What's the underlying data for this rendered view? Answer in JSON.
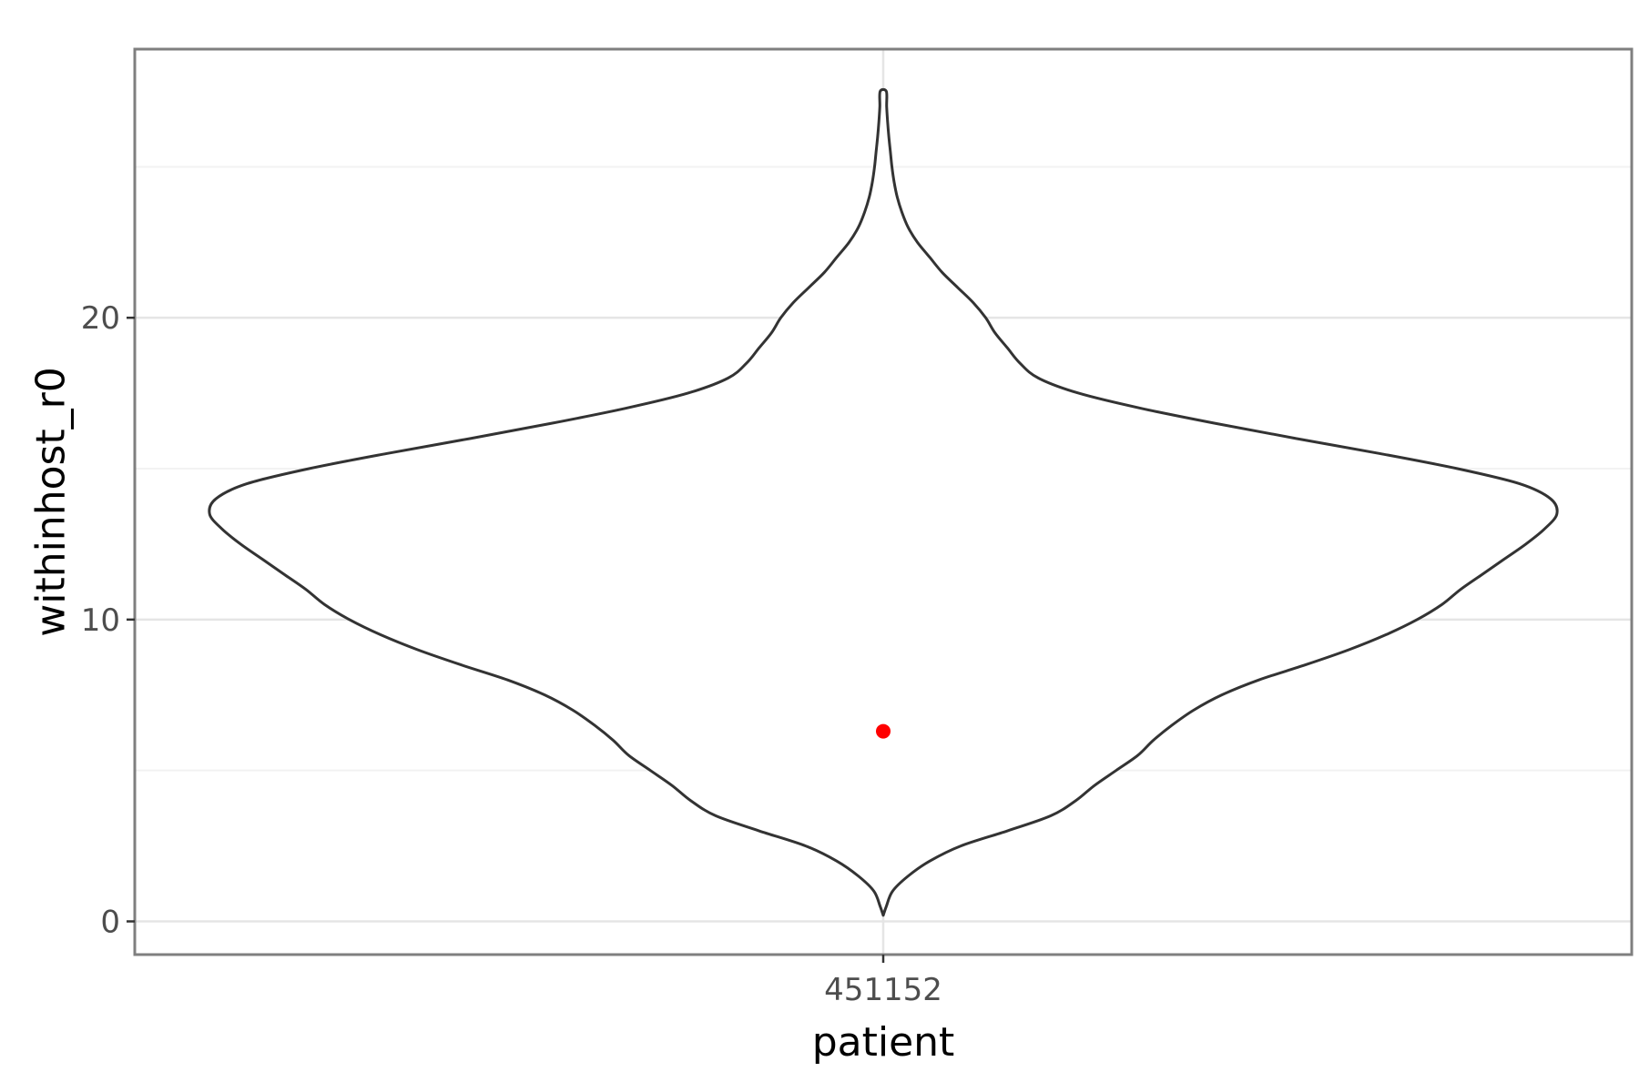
{
  "chart_data": {
    "type": "violin",
    "xlabel": "patient",
    "ylabel": "withinhost_r0",
    "categories": [
      "451152"
    ],
    "ylim": [
      -1.1,
      28.9
    ],
    "yticks": [
      0,
      10,
      20
    ],
    "ytick_labels": [
      "0",
      "10",
      "20"
    ],
    "minor_yticks": [
      5,
      15,
      25
    ],
    "grid": true,
    "violin": {
      "category": "451152",
      "y_min": 0.2,
      "y_max": 27.5,
      "outline_color": "#333333",
      "fill_color": "#ffffff",
      "max_half_width_fraction": 0.9,
      "profile": [
        [
          0.2,
          0.0
        ],
        [
          0.5,
          0.01
        ],
        [
          1.0,
          0.03
        ],
        [
          1.5,
          0.08
        ],
        [
          2.0,
          0.15
        ],
        [
          2.5,
          0.25
        ],
        [
          3.0,
          0.4
        ],
        [
          3.5,
          0.54
        ],
        [
          4.0,
          0.62
        ],
        [
          4.5,
          0.68
        ],
        [
          5.0,
          0.75
        ],
        [
          5.5,
          0.82
        ],
        [
          6.0,
          0.87
        ],
        [
          6.5,
          0.93
        ],
        [
          7.0,
          1.0
        ],
        [
          7.5,
          1.09
        ],
        [
          8.0,
          1.21
        ],
        [
          8.5,
          1.36
        ],
        [
          9.0,
          1.5
        ],
        [
          9.5,
          1.62
        ],
        [
          10.0,
          1.72
        ],
        [
          10.5,
          1.8
        ],
        [
          11.0,
          1.86
        ],
        [
          11.5,
          1.93
        ],
        [
          12.0,
          2.0
        ],
        [
          12.5,
          2.07
        ],
        [
          13.0,
          2.13
        ],
        [
          13.5,
          2.17
        ],
        [
          14.0,
          2.15
        ],
        [
          14.5,
          2.05
        ],
        [
          15.0,
          1.85
        ],
        [
          15.5,
          1.6
        ],
        [
          16.0,
          1.33
        ],
        [
          16.5,
          1.07
        ],
        [
          17.0,
          0.83
        ],
        [
          17.5,
          0.63
        ],
        [
          18.0,
          0.5
        ],
        [
          18.5,
          0.44
        ],
        [
          19.0,
          0.4
        ],
        [
          19.5,
          0.36
        ],
        [
          20.0,
          0.33
        ],
        [
          20.5,
          0.29
        ],
        [
          21.0,
          0.24
        ],
        [
          21.5,
          0.19
        ],
        [
          22.0,
          0.15
        ],
        [
          22.5,
          0.11
        ],
        [
          23.0,
          0.08
        ],
        [
          23.5,
          0.06
        ],
        [
          24.0,
          0.045
        ],
        [
          24.5,
          0.035
        ],
        [
          25.0,
          0.028
        ],
        [
          25.5,
          0.023
        ],
        [
          26.0,
          0.018
        ],
        [
          26.5,
          0.014
        ],
        [
          27.0,
          0.011
        ],
        [
          27.5,
          0.01
        ]
      ]
    },
    "points": [
      {
        "category": "451152",
        "y": 6.3,
        "color": "#ff0000"
      }
    ]
  }
}
